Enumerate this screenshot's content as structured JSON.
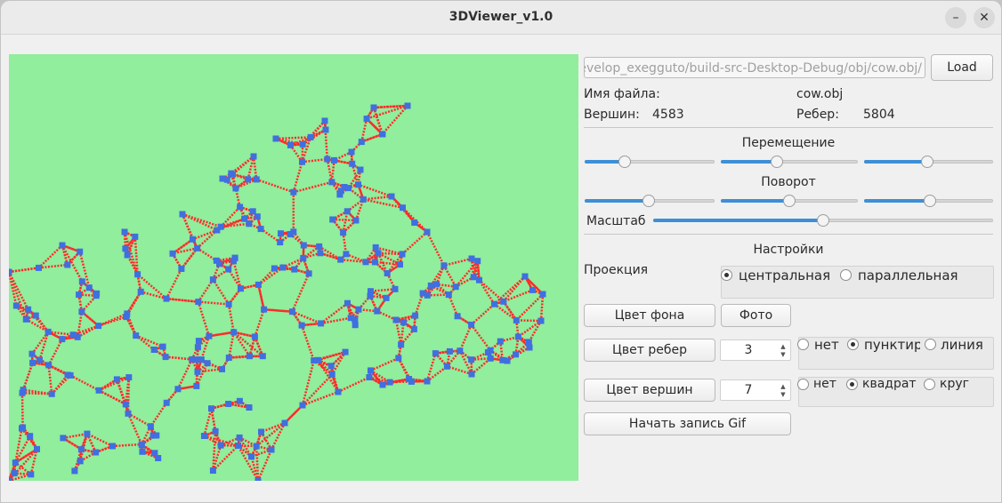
{
  "window": {
    "title": "3DViewer_v1.0",
    "minimize_glyph": "–",
    "close_glyph": "✕"
  },
  "file": {
    "path": "/home/develop_exegguto/build-src-Desktop-Debug/obj/cow.obj",
    "load_label": "Load",
    "name_label": "Имя файла:",
    "name_value": "cow.obj",
    "vertices_label": "Вершин:",
    "vertices_value": "4583",
    "edges_label": "Ребер:",
    "edges_value": "5804"
  },
  "transform": {
    "move_label": "Перемещение",
    "move_values": [
      0.31,
      0.41,
      0.49
    ],
    "rotate_label": "Поворот",
    "rotate_values": [
      0.49,
      0.5,
      0.51
    ],
    "scale_label": "Масштаб",
    "scale_value": 0.5
  },
  "settings": {
    "title": "Настройки",
    "projection_label": "Проекция",
    "projection_options": [
      "центральная",
      "параллельная"
    ],
    "projection_selected": "центральная",
    "bg_color_button": "Цвет фона",
    "photo_button": "Фото",
    "edge_color_button": "Цвет ребер",
    "edge_width": "3",
    "edge_types": [
      "нет",
      "пунктир",
      "линия"
    ],
    "edge_type_selected": "пунктир",
    "vertex_color_button": "Цвет вершин",
    "vertex_size": "7",
    "vertex_types": [
      "нет",
      "квадрат",
      "круг"
    ],
    "vertex_type_selected": "квадрат",
    "gif_button": "Начать запись Gif"
  },
  "colors": {
    "background": "#90ee9c",
    "edges": "#ff2a2a",
    "vertices": "#3f6fe0",
    "slider_accent": "#3d8fd6"
  }
}
